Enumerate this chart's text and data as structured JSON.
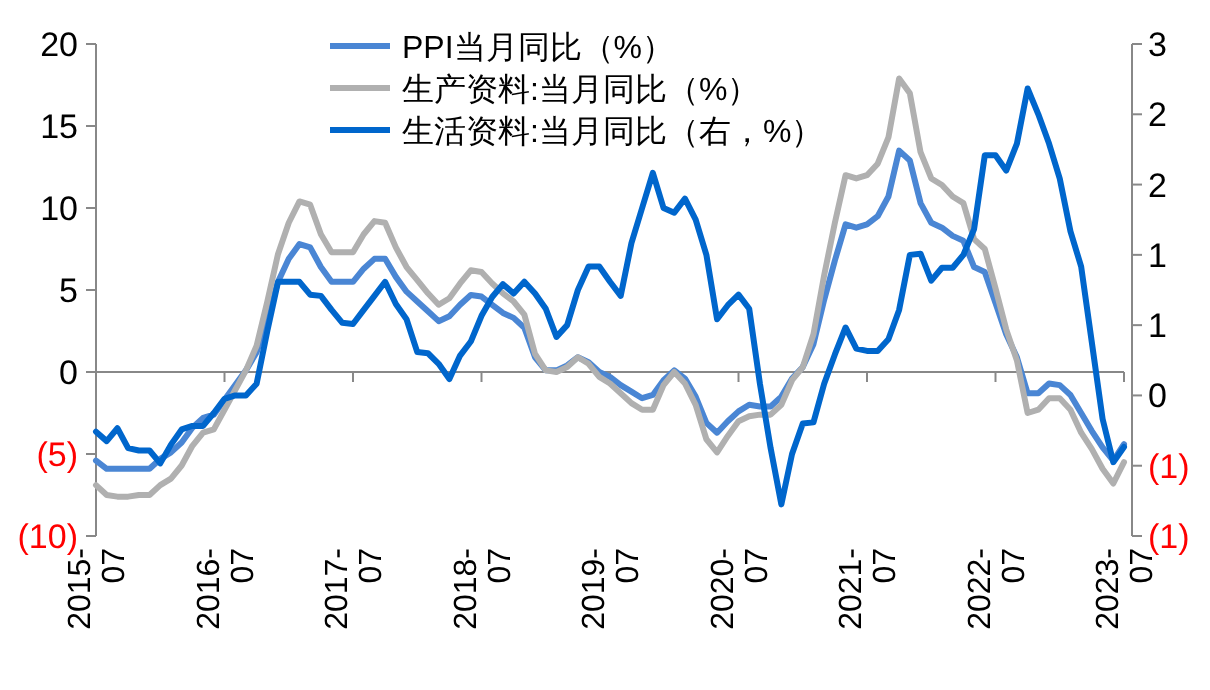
{
  "chart_data": {
    "type": "line",
    "legend": "top",
    "grid": false,
    "ref_lines": [
      {
        "axis": "y",
        "value": 0,
        "color": "#888888"
      }
    ],
    "xlim": [
      "2015-07",
      "2023-07"
    ],
    "xticks": [
      {
        "value": "2015-07",
        "label": "2015-07"
      },
      {
        "value": "2016-07",
        "label": "2016-07"
      },
      {
        "value": "2017-07",
        "label": "2017-07"
      },
      {
        "value": "2018-07",
        "label": "2018-07"
      },
      {
        "value": "2019-07",
        "label": "2019-07"
      },
      {
        "value": "2020-07",
        "label": "2020-07"
      },
      {
        "value": "2021-07",
        "label": "2021-07"
      },
      {
        "value": "2022-07",
        "label": "2022-07"
      },
      {
        "value": "2023-07",
        "label": "2023-07"
      }
    ],
    "ylim": [
      -10,
      20
    ],
    "yticks": [
      {
        "value": -10,
        "label": "(10)"
      },
      {
        "value": -5,
        "label": "(5)"
      },
      0,
      5,
      10,
      15,
      20
    ],
    "y2lim": [
      -1.2,
      3
    ],
    "y2ticks": [
      {
        "value": -1.2,
        "label": "(1)"
      },
      {
        "value": -0.6,
        "label": "(1)"
      },
      0,
      {
        "value": 0.6,
        "label": "1"
      },
      {
        "value": 1.2,
        "label": "1"
      },
      {
        "value": 1.8,
        "label": "2"
      },
      {
        "value": 2.4,
        "label": "2"
      },
      3
    ],
    "x": [
      "2015-07",
      "2015-08",
      "2015-09",
      "2015-10",
      "2015-11",
      "2015-12",
      "2016-01",
      "2016-02",
      "2016-03",
      "2016-04",
      "2016-05",
      "2016-06",
      "2016-07",
      "2016-08",
      "2016-09",
      "2016-10",
      "2016-11",
      "2016-12",
      "2017-01",
      "2017-02",
      "2017-03",
      "2017-04",
      "2017-05",
      "2017-06",
      "2017-07",
      "2017-08",
      "2017-09",
      "2017-10",
      "2017-11",
      "2017-12",
      "2018-01",
      "2018-02",
      "2018-03",
      "2018-04",
      "2018-05",
      "2018-06",
      "2018-07",
      "2018-08",
      "2018-09",
      "2018-10",
      "2018-11",
      "2018-12",
      "2019-01",
      "2019-02",
      "2019-03",
      "2019-04",
      "2019-05",
      "2019-06",
      "2019-07",
      "2019-08",
      "2019-09",
      "2019-10",
      "2019-11",
      "2019-12",
      "2020-01",
      "2020-02",
      "2020-03",
      "2020-04",
      "2020-05",
      "2020-06",
      "2020-07",
      "2020-08",
      "2020-09",
      "2020-10",
      "2020-11",
      "2020-12",
      "2021-01",
      "2021-02",
      "2021-03",
      "2021-04",
      "2021-05",
      "2021-06",
      "2021-07",
      "2021-08",
      "2021-09",
      "2021-10",
      "2021-11",
      "2021-12",
      "2022-01",
      "2022-02",
      "2022-03",
      "2022-04",
      "2022-05",
      "2022-06",
      "2022-07",
      "2022-08",
      "2022-09",
      "2022-10",
      "2022-11",
      "2022-12",
      "2023-01",
      "2023-02",
      "2023-03",
      "2023-04",
      "2023-05",
      "2023-06",
      "2023-07"
    ],
    "series": [
      {
        "name": "PPI当月同比（%）",
        "color": "#4a86d4",
        "values": [
          -5.4,
          -5.9,
          -5.9,
          -5.9,
          -5.9,
          -5.9,
          -5.3,
          -4.9,
          -4.3,
          -3.4,
          -2.8,
          -2.6,
          -1.7,
          -0.8,
          0.1,
          1.2,
          3.3,
          5.5,
          6.9,
          7.8,
          7.6,
          6.4,
          5.5,
          5.5,
          5.5,
          6.3,
          6.9,
          6.9,
          5.8,
          4.9,
          4.3,
          3.7,
          3.1,
          3.4,
          4.1,
          4.7,
          4.6,
          4.1,
          3.6,
          3.3,
          2.7,
          0.9,
          0.1,
          0.1,
          0.4,
          0.9,
          0.6,
          0.0,
          -0.3,
          -0.8,
          -1.2,
          -1.6,
          -1.4,
          -0.5,
          0.1,
          -0.4,
          -1.5,
          -3.1,
          -3.7,
          -3.0,
          -2.4,
          -2.0,
          -2.1,
          -2.1,
          -1.5,
          -0.4,
          0.3,
          1.7,
          4.4,
          6.8,
          9.0,
          8.8,
          9.0,
          9.5,
          10.7,
          13.5,
          12.9,
          10.3,
          9.1,
          8.8,
          8.3,
          8.0,
          6.4,
          6.1,
          4.2,
          2.3,
          0.9,
          -1.3,
          -1.3,
          -0.7,
          -0.8,
          -1.4,
          -2.5,
          -3.6,
          -4.6,
          -5.4,
          -4.4
        ]
      },
      {
        "name": "生产资料:当月同比（%）",
        "color": "#b0b0b0",
        "values": [
          -6.9,
          -7.5,
          -7.6,
          -7.6,
          -7.5,
          -7.5,
          -6.9,
          -6.5,
          -5.7,
          -4.5,
          -3.7,
          -3.5,
          -2.3,
          -1.1,
          0.1,
          1.6,
          4.3,
          7.2,
          9.1,
          10.4,
          10.2,
          8.4,
          7.3,
          7.3,
          7.3,
          8.4,
          9.2,
          9.1,
          7.6,
          6.4,
          5.6,
          4.8,
          4.1,
          4.5,
          5.4,
          6.2,
          6.1,
          5.4,
          4.8,
          4.3,
          3.5,
          1.1,
          0.1,
          0.0,
          0.3,
          0.9,
          0.5,
          -0.3,
          -0.7,
          -1.3,
          -1.9,
          -2.3,
          -2.3,
          -0.8,
          0.0,
          -0.7,
          -2.0,
          -4.1,
          -4.9,
          -3.9,
          -3.0,
          -2.7,
          -2.6,
          -2.6,
          -2.0,
          -0.5,
          0.3,
          2.3,
          5.9,
          9.1,
          12.0,
          11.8,
          12.0,
          12.7,
          14.3,
          17.9,
          17.0,
          13.4,
          11.8,
          11.4,
          10.7,
          10.3,
          8.1,
          7.5,
          5.1,
          2.6,
          0.7,
          -2.5,
          -2.3,
          -1.6,
          -1.6,
          -2.3,
          -3.7,
          -4.7,
          -5.9,
          -6.8,
          -5.5
        ]
      },
      {
        "name": "生活资料:当月同比（右，%）",
        "color": "#0066cc",
        "axis": "y2",
        "values": [
          -0.31,
          -0.39,
          -0.28,
          -0.45,
          -0.47,
          -0.47,
          -0.58,
          -0.42,
          -0.29,
          -0.26,
          -0.26,
          -0.15,
          -0.03,
          0.0,
          0.0,
          0.1,
          0.55,
          0.97,
          0.97,
          0.97,
          0.86,
          0.85,
          0.73,
          0.62,
          0.61,
          0.73,
          0.85,
          0.97,
          0.78,
          0.65,
          0.37,
          0.36,
          0.27,
          0.14,
          0.34,
          0.46,
          0.68,
          0.84,
          0.95,
          0.87,
          0.97,
          0.87,
          0.74,
          0.5,
          0.6,
          0.9,
          1.1,
          1.1,
          0.97,
          0.85,
          1.3,
          1.6,
          1.9,
          1.6,
          1.56,
          1.68,
          1.5,
          1.2,
          0.65,
          0.77,
          0.86,
          0.74,
          0.1,
          -0.45,
          -0.93,
          -0.5,
          -0.24,
          -0.23,
          0.1,
          0.35,
          0.58,
          0.4,
          0.38,
          0.38,
          0.48,
          0.73,
          1.2,
          1.21,
          0.98,
          1.09,
          1.09,
          1.2,
          1.42,
          2.05,
          2.05,
          1.92,
          2.15,
          2.62,
          2.4,
          2.15,
          1.85,
          1.4,
          1.1,
          0.45,
          -0.2,
          -0.57,
          -0.44
        ]
      }
    ]
  }
}
